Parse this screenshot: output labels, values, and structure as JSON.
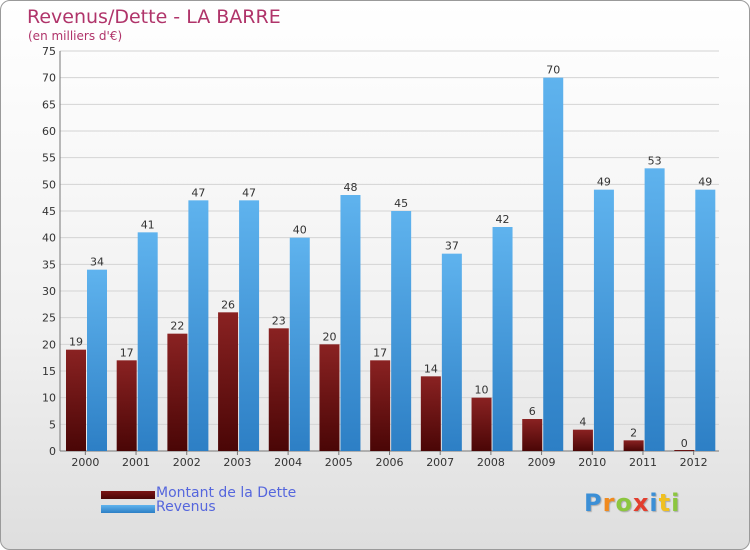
{
  "chart_data": {
    "type": "bar",
    "title": "Revenus/Dette - LA BARRE",
    "subtitle": "(en milliers d'€)",
    "xlabel": "",
    "ylabel": "",
    "categories": [
      "2000",
      "2001",
      "2002",
      "2003",
      "2004",
      "2005",
      "2006",
      "2007",
      "2008",
      "2009",
      "2010",
      "2011",
      "2012"
    ],
    "series": [
      {
        "name": "Montant de la Dette",
        "color": "#7a1414",
        "values": [
          19,
          17,
          22,
          26,
          23,
          20,
          17,
          14,
          10,
          6,
          4,
          2,
          0
        ]
      },
      {
        "name": "Revenus",
        "color": "#4da3e3",
        "values": [
          34,
          41,
          47,
          47,
          40,
          48,
          45,
          37,
          42,
          70,
          49,
          53,
          49
        ]
      }
    ],
    "ylim": [
      0,
      75
    ],
    "yticks": [
      0,
      5,
      10,
      15,
      20,
      25,
      30,
      35,
      40,
      45,
      50,
      55,
      60,
      65,
      70,
      75
    ],
    "grid": true,
    "legend": "bottom-left"
  },
  "branding": {
    "logo_letters": [
      "P",
      "r",
      "o",
      "x",
      "i",
      "t",
      "i"
    ],
    "logo_colors": [
      "#3b8fd6",
      "#f08a1e",
      "#8cc63f",
      "#e23e2e",
      "#3b8fd6",
      "#f0c020",
      "#8cc63f"
    ]
  }
}
